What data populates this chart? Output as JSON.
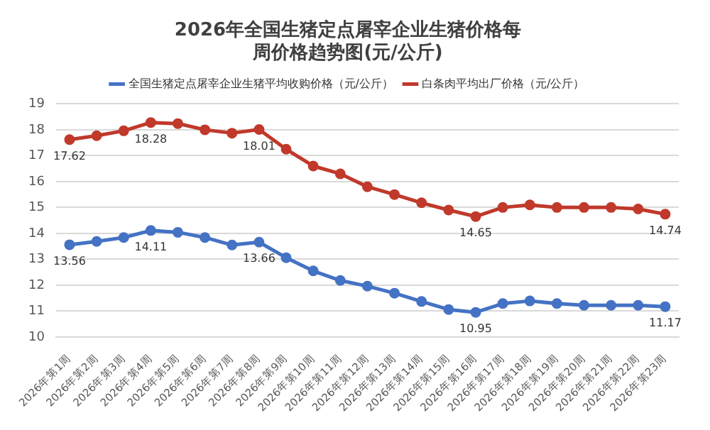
{
  "chart_data": {
    "type": "line",
    "title": "2026年全国生猪定点屠宰企业生猪价格每周价格趋势图(元/公斤)",
    "categories": [
      "2026年第1周",
      "2026年第2周",
      "2026年第3周",
      "2026年第4周",
      "2026年第5周",
      "2026年第6周",
      "2026年第7周",
      "2026年第8周",
      "2026年第9周",
      "2026年第10周",
      "2026年第11周",
      "2026年第12周",
      "2026年第13周",
      "2026年第14周",
      "2026年第15周",
      "2026年第16周",
      "2026年第17周",
      "2026年第18周",
      "2026年第19周",
      "2026年第20周",
      "2026年第21周",
      "2026年第22周",
      "2026年第23周"
    ],
    "series": [
      {
        "name": "全国生猪定点屠宰企业生猪平均收购价格（元/公斤）",
        "color": "#4472c4",
        "values": [
          13.56,
          13.69,
          13.84,
          14.11,
          14.04,
          13.84,
          13.55,
          13.66,
          13.06,
          12.55,
          12.18,
          11.96,
          11.69,
          11.37,
          11.06,
          10.95,
          11.29,
          11.39,
          11.29,
          11.22,
          11.22,
          11.22,
          11.17
        ],
        "value_labels": [
          "13.56",
          null,
          null,
          "14.11",
          null,
          null,
          null,
          "13.66",
          null,
          null,
          null,
          null,
          null,
          null,
          null,
          "10.95",
          null,
          null,
          null,
          null,
          null,
          null,
          "11.17"
        ]
      },
      {
        "name": "白条肉平均出厂价格（元/公斤）",
        "color": "#c0392b",
        "values": [
          17.62,
          17.77,
          17.96,
          18.28,
          18.24,
          18.0,
          17.87,
          18.01,
          17.25,
          16.6,
          16.3,
          15.8,
          15.5,
          15.18,
          14.9,
          14.65,
          15.0,
          15.1,
          15.0,
          15.0,
          15.0,
          14.94,
          14.74
        ],
        "value_labels": [
          "17.62",
          null,
          null,
          "18.28",
          null,
          null,
          null,
          "18.01",
          null,
          null,
          null,
          null,
          null,
          null,
          null,
          "14.65",
          null,
          null,
          null,
          null,
          null,
          null,
          "14.74"
        ]
      }
    ],
    "ylim": [
      10,
      19
    ],
    "yticks": [
      10,
      11,
      12,
      13,
      14,
      15,
      16,
      17,
      18,
      19
    ],
    "grid": "y",
    "legend": "top",
    "marker": "circle"
  }
}
